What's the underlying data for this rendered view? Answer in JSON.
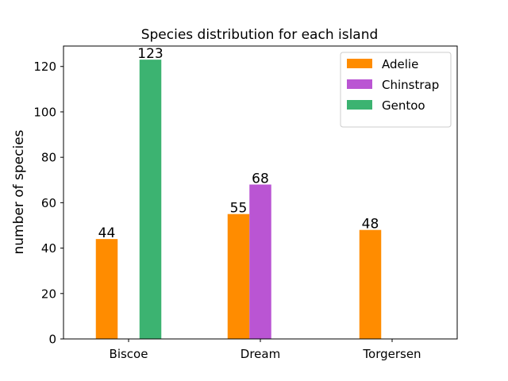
{
  "chart_data": {
    "type": "bar",
    "title": "Species distribution for each island",
    "xlabel": "",
    "ylabel": "number of species",
    "categories": [
      "Biscoe",
      "Dream",
      "Torgersen"
    ],
    "series": [
      {
        "name": "Adelie",
        "color": "#ff8c00",
        "values": [
          44,
          55,
          48
        ]
      },
      {
        "name": "Chinstrap",
        "color": "#ba55d3",
        "values": [
          0,
          68,
          0
        ]
      },
      {
        "name": "Gentoo",
        "color": "#3cb371",
        "values": [
          123,
          0,
          0
        ]
      }
    ],
    "ylim": [
      0,
      129
    ],
    "yticks": [
      0,
      20,
      40,
      60,
      80,
      100,
      120
    ],
    "grid": false,
    "legend": "top-right",
    "data_labels": true
  }
}
